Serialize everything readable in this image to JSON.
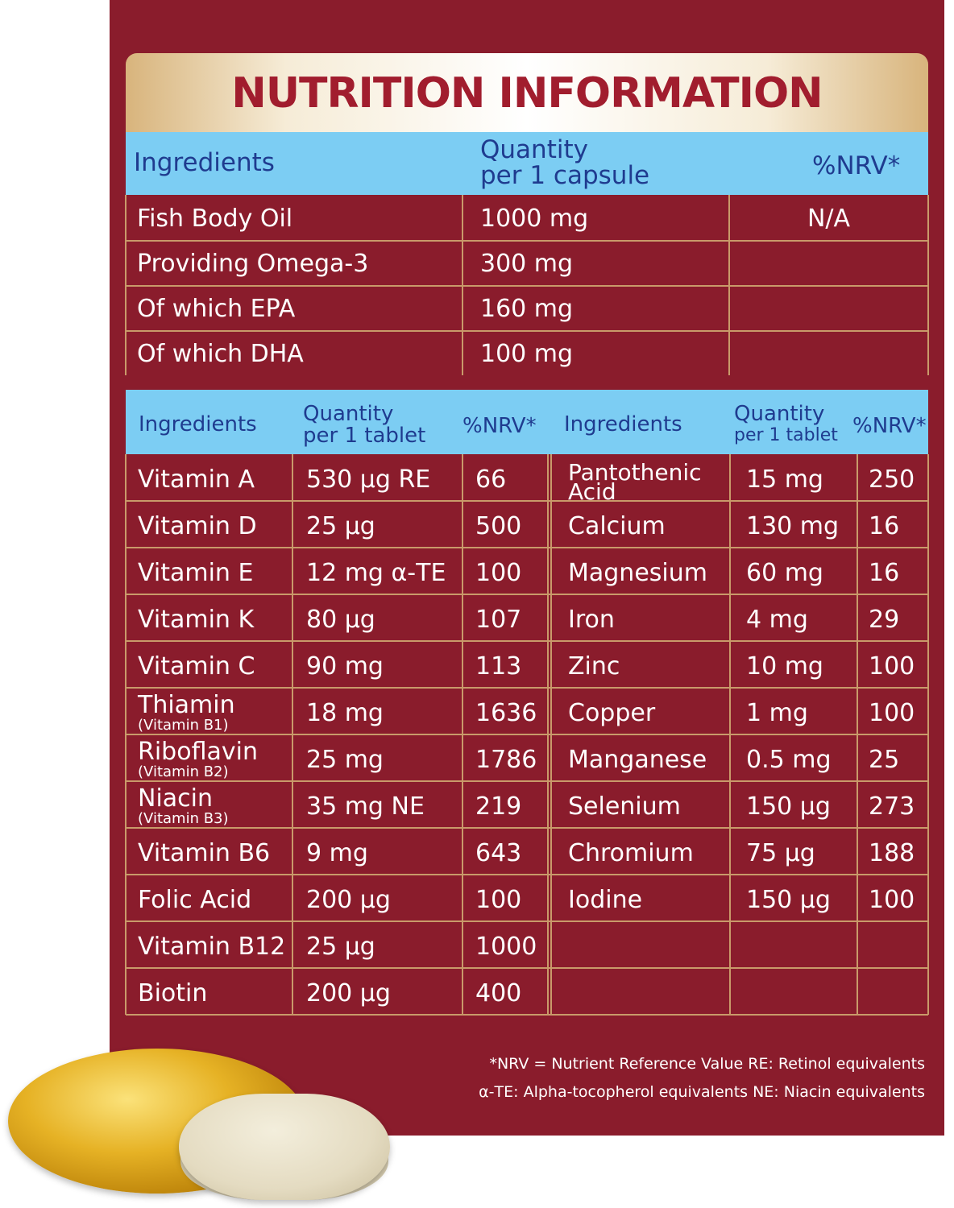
{
  "title": "NUTRITION INFORMATION",
  "capsule_table": {
    "headers": {
      "ingredients": "Ingredients",
      "quantity_line1": "Quantity",
      "quantity_line2": "per 1 capsule",
      "nrv": "%NRV*"
    },
    "rows": [
      {
        "name": "Fish Body Oil",
        "qty": "1000 mg",
        "nrv": "N/A"
      },
      {
        "name": "Providing Omega-3",
        "qty": "300 mg",
        "nrv": ""
      },
      {
        "name": "Of which EPA",
        "qty": "160 mg",
        "nrv": ""
      },
      {
        "name": "Of which DHA",
        "qty": "100 mg",
        "nrv": ""
      }
    ]
  },
  "tablet_table": {
    "headers": {
      "ingredients": "Ingredients",
      "quantity_line1": "Quantity",
      "quantity_line2": "per 1 tablet",
      "nrv": "%NRV*"
    },
    "left_rows": [
      {
        "name": "Vitamin A",
        "sub": "",
        "qty": "530 µg RE",
        "nrv": "66"
      },
      {
        "name": "Vitamin D",
        "sub": "",
        "qty": "25 µg",
        "nrv": "500"
      },
      {
        "name": "Vitamin E",
        "sub": "",
        "qty": "12 mg α-TE",
        "nrv": "100"
      },
      {
        "name": "Vitamin K",
        "sub": "",
        "qty": "80 µg",
        "nrv": "107"
      },
      {
        "name": "Vitamin C",
        "sub": "",
        "qty": "90 mg",
        "nrv": "113"
      },
      {
        "name": "Thiamin",
        "sub": "(Vitamin B1)",
        "qty": "18 mg",
        "nrv": "1636"
      },
      {
        "name": "Riboflavin",
        "sub": "(Vitamin B2)",
        "qty": "25 mg",
        "nrv": "1786"
      },
      {
        "name": "Niacin",
        "sub": "(Vitamin B3)",
        "qty": "35 mg NE",
        "nrv": "219"
      },
      {
        "name": "Vitamin B6",
        "sub": "",
        "qty": "9 mg",
        "nrv": "643"
      },
      {
        "name": "Folic Acid",
        "sub": "",
        "qty": "200 µg",
        "nrv": "100"
      },
      {
        "name": "Vitamin B12",
        "sub": "",
        "qty": "25 µg",
        "nrv": "1000"
      },
      {
        "name": "Biotin",
        "sub": "",
        "qty": "200 µg",
        "nrv": "400"
      }
    ],
    "right_rows": [
      {
        "name": "Pantothenic",
        "name2": "Acid",
        "qty": "15 mg",
        "nrv": "250"
      },
      {
        "name": "Calcium",
        "name2": "",
        "qty": "130 mg",
        "nrv": "16"
      },
      {
        "name": "Magnesium",
        "name2": "",
        "qty": "60 mg",
        "nrv": "16"
      },
      {
        "name": "Iron",
        "name2": "",
        "qty": "4 mg",
        "nrv": "29"
      },
      {
        "name": "Zinc",
        "name2": "",
        "qty": "10 mg",
        "nrv": "100"
      },
      {
        "name": "Copper",
        "name2": "",
        "qty": "1 mg",
        "nrv": "100"
      },
      {
        "name": "Manganese",
        "name2": "",
        "qty": "0.5 mg",
        "nrv": "25"
      },
      {
        "name": "Selenium",
        "name2": "",
        "qty": "150 µg",
        "nrv": "273"
      },
      {
        "name": "Chromium",
        "name2": "",
        "qty": "75 µg",
        "nrv": "188"
      },
      {
        "name": "Iodine",
        "name2": "",
        "qty": "150 µg",
        "nrv": "100"
      },
      {
        "name": "",
        "name2": "",
        "qty": "",
        "nrv": ""
      },
      {
        "name": "",
        "name2": "",
        "qty": "",
        "nrv": ""
      }
    ]
  },
  "footnotes": [
    "*NRV = Nutrient Reference Value RE: Retinol equivalents",
    "α-TE: Alpha-tocopherol equivalents NE: Niacin equivalents"
  ],
  "colors": {
    "background_red": "#8a1c2c",
    "header_blue": "#7ccdf3",
    "header_text": "#1f3b8f",
    "title_red": "#a11d2e",
    "gold_line": "#c99a6a"
  }
}
